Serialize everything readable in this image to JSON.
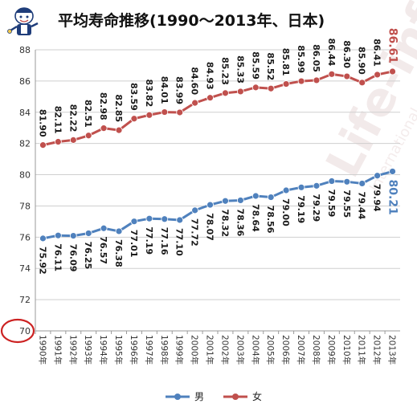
{
  "chart_data": {
    "type": "line",
    "title": "平均寿命推移(1990～2013年、日本)",
    "categories": [
      "1990年",
      "1991年",
      "1992年",
      "1993年",
      "1994年",
      "1995年",
      "1996年",
      "1997年",
      "1998年",
      "1999年",
      "2000年",
      "2001年",
      "2002年",
      "2003年",
      "2004年",
      "2005年",
      "2006年",
      "2007年",
      "2008年",
      "2009年",
      "2010年",
      "2011年",
      "2012年",
      "2013年"
    ],
    "series": [
      {
        "name": "男",
        "color": "#4f81bd",
        "values": [
          75.92,
          76.11,
          76.09,
          76.25,
          76.57,
          76.38,
          77.01,
          77.19,
          77.16,
          77.1,
          77.72,
          78.07,
          78.32,
          78.36,
          78.64,
          78.56,
          79.0,
          79.19,
          79.29,
          79.59,
          79.55,
          79.44,
          79.94,
          80.21
        ]
      },
      {
        "name": "女",
        "color": "#c0504d",
        "values": [
          81.9,
          82.11,
          82.22,
          82.51,
          82.98,
          82.85,
          83.59,
          83.82,
          84.01,
          83.99,
          84.6,
          84.93,
          85.23,
          85.33,
          85.59,
          85.52,
          85.81,
          85.99,
          86.05,
          86.44,
          86.3,
          85.9,
          86.41,
          86.61
        ]
      }
    ],
    "ylim": [
      70,
      88
    ],
    "yticks": [
      70,
      72,
      74,
      76,
      78,
      80,
      82,
      84,
      86,
      88
    ],
    "grid": true,
    "legend_position": "bottom",
    "highlight_tick": 70,
    "highlight_color": "#cc2222"
  },
  "watermark": {
    "text": "Life-info",
    "subtext": "International"
  }
}
